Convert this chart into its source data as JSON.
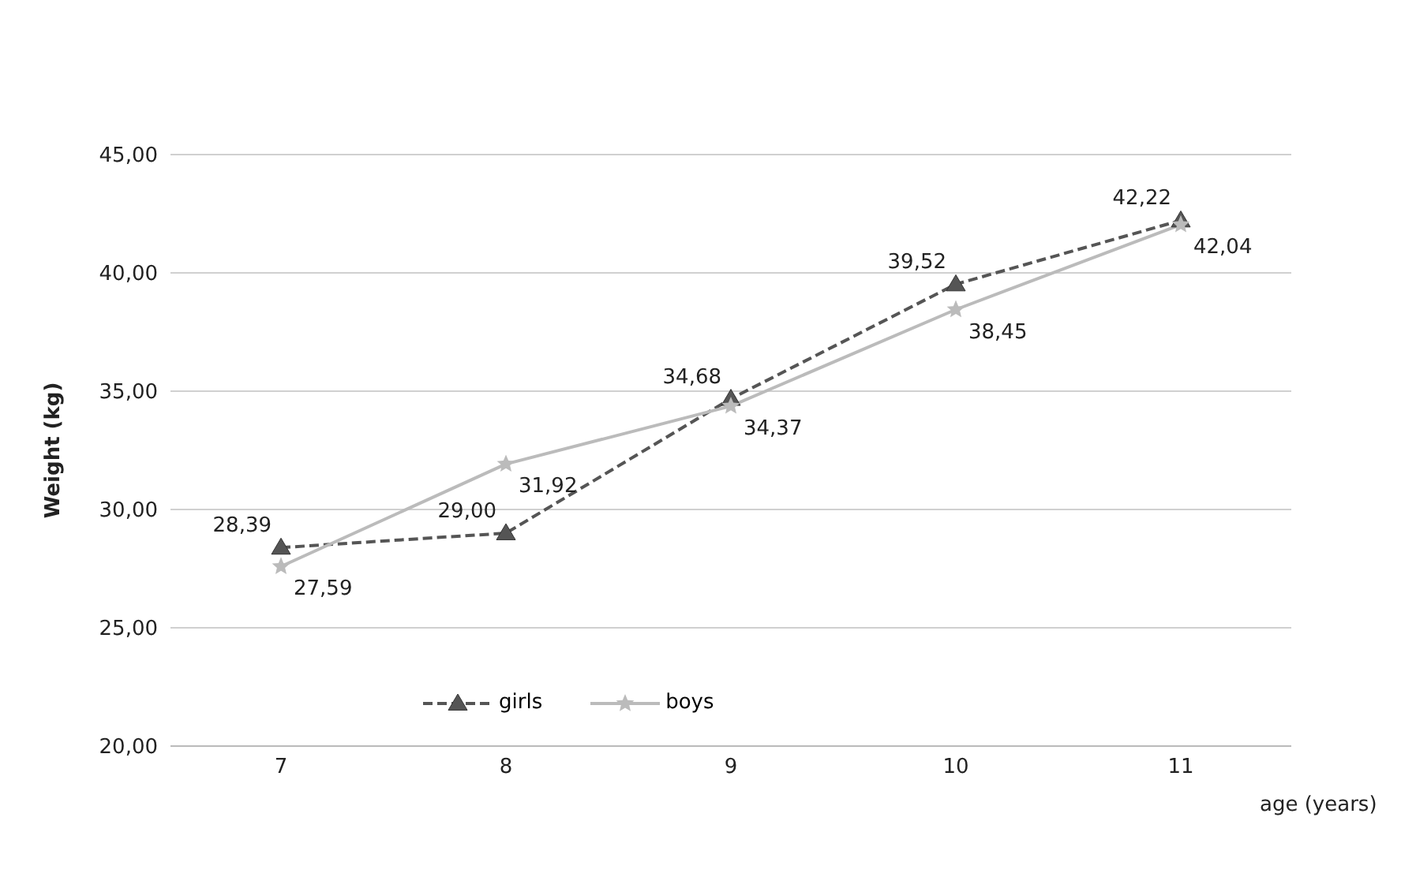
{
  "chart_data": {
    "type": "line",
    "xlabel": "age (years)",
    "ylabel": "Weight (kg)",
    "categories": [
      "7",
      "8",
      "9",
      "10",
      "11"
    ],
    "series": [
      {
        "name": "girls",
        "color": "#555555",
        "line_style": "dashed",
        "marker": "triangle",
        "values": [
          28.39,
          29.0,
          34.68,
          39.52,
          42.22
        ],
        "value_labels": [
          "28,39",
          "29,00",
          "34,68",
          "39,52",
          "42,22"
        ]
      },
      {
        "name": "boys",
        "color": "#bbbbbb",
        "line_style": "solid",
        "marker": "star",
        "values": [
          27.59,
          31.92,
          34.37,
          38.45,
          42.04
        ],
        "value_labels": [
          "27,59",
          "31,92",
          "34,37",
          "38,45",
          "42,04"
        ]
      }
    ],
    "ylim": [
      20,
      45
    ],
    "yticks": [
      {
        "value": 20,
        "label": "20,00"
      },
      {
        "value": 25,
        "label": "25,00"
      },
      {
        "value": 30,
        "label": "30,00"
      },
      {
        "value": 35,
        "label": "35,00"
      },
      {
        "value": 40,
        "label": "40,00"
      },
      {
        "value": 45,
        "label": "45,00"
      }
    ],
    "grid": "y",
    "legend": "bottom"
  }
}
